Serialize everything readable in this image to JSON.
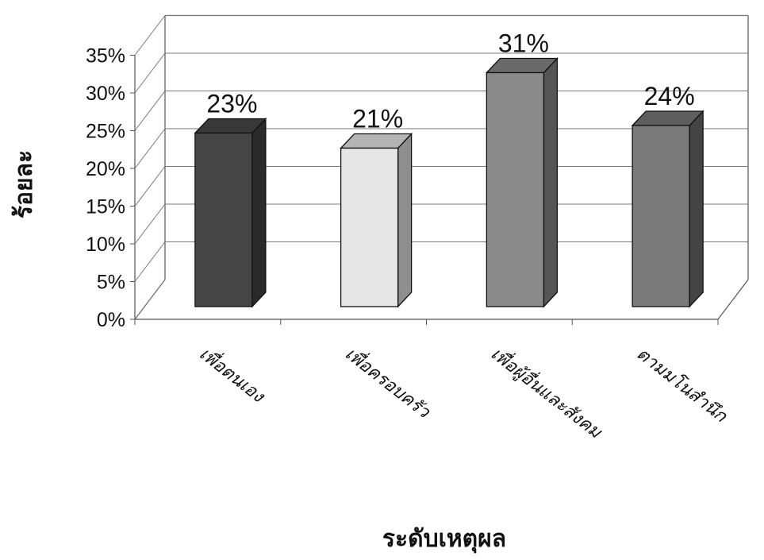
{
  "chart_data": {
    "type": "bar",
    "categories": [
      "เพื่อตนเอง",
      "เพื่อครอบครัว",
      "เพื่อผู้อื่นและสังคม",
      "ตามมโนสำนึก"
    ],
    "values": [
      23,
      21,
      31,
      24
    ],
    "data_labels": [
      "23%",
      "21%",
      "31%",
      "24%"
    ],
    "xlabel": "ระดับเหตุผล",
    "ylabel": "ร้อยละ",
    "ylim": [
      0,
      35
    ],
    "yticks": [
      "0%",
      "5%",
      "10%",
      "15%",
      "20%",
      "25%",
      "30%",
      "35%"
    ],
    "grid": true,
    "legend": "none",
    "colors": {
      "front": [
        "#454545",
        "#e6e6e6",
        "#8a8a8a",
        "#7a7a7a"
      ],
      "side": [
        "#2a2a2a",
        "#8e8e8e",
        "#555555",
        "#444444"
      ],
      "top": [
        "#383838",
        "#b4b4b4",
        "#6a6a6a",
        "#5e5e5e"
      ]
    }
  }
}
